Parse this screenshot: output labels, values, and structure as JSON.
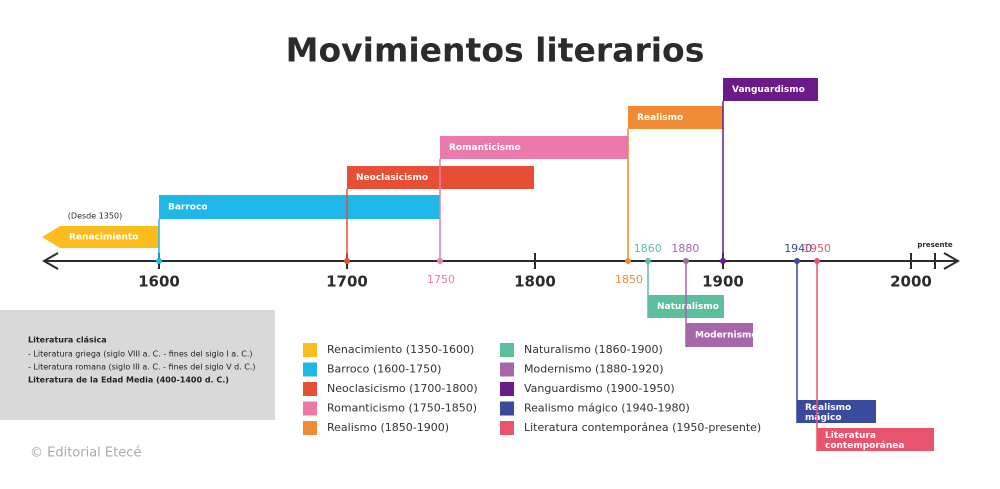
{
  "title": "Movimientos literarios",
  "timeline": {
    "start_note": "(Desde 1350)",
    "end_label": "presente",
    "major_years": [
      1600,
      1700,
      1800,
      1900,
      2000
    ],
    "minor_years": [
      {
        "year": 1750,
        "color": "#e97aab"
      },
      {
        "year": 1850,
        "color": "#f08a35"
      },
      {
        "year": 1860,
        "color": "#5cbf9b"
      },
      {
        "year": 1880,
        "color": "#a766a9"
      },
      {
        "year": 1940,
        "color": "#3a4a9c"
      },
      {
        "year": 1950,
        "color": "#e8546e"
      }
    ]
  },
  "movements": [
    {
      "label": "Renacimiento",
      "color": "#fbbd1d"
    },
    {
      "label": "Barroco",
      "color": "#1fb6e8"
    },
    {
      "label": "Neoclasicismo",
      "color": "#e64f35"
    },
    {
      "label": "Romanticismo",
      "color": "#e97aab"
    },
    {
      "label": "Realismo",
      "color": "#f08a35"
    },
    {
      "label": "Naturalismo",
      "color": "#5cbf9b"
    },
    {
      "label": "Modernismo",
      "color": "#a766a9"
    },
    {
      "label": "Vanguardismo",
      "color": "#6a1b87"
    },
    {
      "label": "Realismo mágico",
      "color": "#3a4a9c"
    },
    {
      "label": "Literatura contemporánea",
      "color": "#e8546e"
    }
  ],
  "legend": [
    "Renacimiento (1350-1600)",
    "Barroco (1600-1750)",
    "Neoclasicismo (1700-1800)",
    "Romanticismo (1750-1850)",
    "Realismo (1850-1900)",
    "Naturalismo (1860-1900)",
    "Modernismo (1880-1920)",
    "Vanguardismo (1900-1950)",
    "Realismo mágico (1940-1980)",
    "Literatura contemporánea (1950-presente)"
  ],
  "info_box": {
    "heading": "Literatura clásica",
    "items": [
      "- Literatura griega (siglo VIII a. C. - fines del siglo I a. C.)",
      "- Literatura romana (siglo III a. C. - fines del siglo V d. C.)"
    ],
    "footer": "Literatura de la Edad Media (400-1400 d. C.)"
  },
  "credit": "© Editorial Etecé"
}
